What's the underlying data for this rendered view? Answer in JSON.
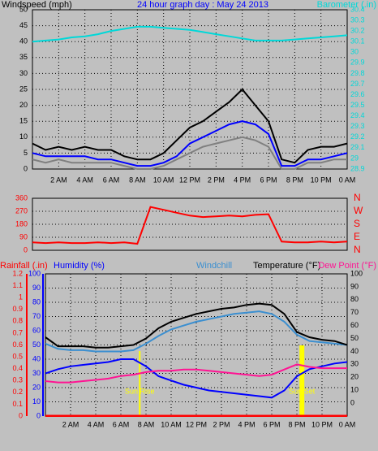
{
  "chart_data": [
    {
      "type": "line",
      "title": "24 hour graph day : May 24 2013",
      "y_label": "Windspeed (mph)",
      "y2_label": "Barometer (.in)",
      "x": [
        0,
        1,
        2,
        3,
        4,
        5,
        6,
        7,
        8,
        9,
        10,
        11,
        12,
        13,
        14,
        15,
        16,
        17,
        18,
        19,
        20,
        21,
        22,
        23,
        24
      ],
      "xlim": [
        0,
        24
      ],
      "xticks": [
        {
          "value": 2,
          "label": "2 AM"
        },
        {
          "value": 4,
          "label": "4 AM"
        },
        {
          "value": 6,
          "label": "6 AM"
        },
        {
          "value": 8,
          "label": "8 AM"
        },
        {
          "value": 10,
          "label": "10 AM"
        },
        {
          "value": 12,
          "label": "12 PM"
        },
        {
          "value": 14,
          "label": "2 PM"
        },
        {
          "value": 16,
          "label": "4 PM"
        },
        {
          "value": 18,
          "label": "6 PM"
        },
        {
          "value": 20,
          "label": "8 PM"
        },
        {
          "value": 22,
          "label": "10 PM"
        },
        {
          "value": 24,
          "label": "0 AM"
        }
      ],
      "ylim": [
        0,
        50
      ],
      "yticks": [
        0,
        5,
        10,
        15,
        20,
        25,
        30,
        35,
        40,
        45,
        50
      ],
      "y2lim": [
        28.9,
        30.4
      ],
      "y2ticks": [
        28.9,
        29,
        29.1,
        29.2,
        29.3,
        29.4,
        29.5,
        29.6,
        29.7,
        29.8,
        29.9,
        30,
        30.1,
        30.2,
        30.3,
        30.4
      ],
      "grid": true,
      "series": [
        {
          "color": "#808080",
          "values": [
            3,
            2,
            3,
            2,
            2,
            2,
            2,
            1,
            0,
            0,
            1,
            3,
            5,
            7,
            8,
            9,
            10,
            9,
            7,
            0,
            0,
            2,
            2,
            3,
            3
          ]
        },
        {
          "color": "#000000",
          "values": [
            8,
            6,
            7,
            6,
            7,
            6,
            6,
            4,
            3,
            3,
            5,
            9,
            13,
            15,
            18,
            21,
            25,
            20,
            15,
            3,
            2,
            6,
            7,
            7,
            8
          ]
        },
        {
          "color": "#0000ff",
          "values": [
            5,
            4,
            4,
            4,
            4,
            3,
            3,
            2,
            1,
            1,
            2,
            4,
            8,
            10,
            12,
            14,
            15,
            14,
            11,
            1,
            1,
            3,
            3,
            4,
            5
          ]
        },
        {
          "color": "#00d8d8",
          "axis": "y2",
          "values": [
            30.1,
            30.11,
            30.12,
            30.14,
            30.15,
            30.17,
            30.2,
            30.22,
            30.24,
            30.24,
            30.23,
            30.22,
            30.21,
            30.19,
            30.17,
            30.15,
            30.13,
            30.11,
            30.11,
            30.11,
            30.12,
            30.13,
            30.14,
            30.15,
            30.16
          ]
        }
      ]
    },
    {
      "type": "line",
      "x": [
        0,
        1,
        2,
        3,
        4,
        5,
        6,
        7,
        8,
        9,
        10,
        11,
        12,
        13,
        14,
        15,
        16,
        17,
        18,
        19,
        20,
        21,
        22,
        23,
        24
      ],
      "xlim": [
        0,
        24
      ],
      "ylim": [
        0,
        360
      ],
      "yticks": [
        0,
        90,
        180,
        270,
        360
      ],
      "y2lim": [
        0,
        360
      ],
      "y2ticks": [
        {
          "value": 0,
          "label": "N"
        },
        {
          "value": 90,
          "label": "E"
        },
        {
          "value": 180,
          "label": "S"
        },
        {
          "value": 270,
          "label": "W"
        },
        {
          "value": 360,
          "label": "N"
        }
      ],
      "grid": true,
      "series": [
        {
          "color": "#ff0000",
          "values": [
            55,
            50,
            55,
            50,
            50,
            55,
            50,
            55,
            45,
            300,
            280,
            260,
            240,
            230,
            235,
            240,
            235,
            245,
            250,
            60,
            55,
            55,
            60,
            55,
            60
          ]
        }
      ]
    },
    {
      "type": "line",
      "x": [
        0,
        1,
        2,
        3,
        4,
        5,
        6,
        7,
        8,
        9,
        10,
        11,
        12,
        13,
        14,
        15,
        16,
        17,
        18,
        19,
        20,
        21,
        22,
        23,
        24
      ],
      "xlim": [
        0,
        24
      ],
      "xticks": [
        {
          "value": 2,
          "label": "2 AM"
        },
        {
          "value": 4,
          "label": "4 AM"
        },
        {
          "value": 6,
          "label": "6 AM"
        },
        {
          "value": 8,
          "label": "8 AM"
        },
        {
          "value": 10,
          "label": "10 AM"
        },
        {
          "value": 12,
          "label": "12 PM"
        },
        {
          "value": 14,
          "label": "2 PM"
        },
        {
          "value": 16,
          "label": "4 PM"
        },
        {
          "value": 18,
          "label": "6 PM"
        },
        {
          "value": 20,
          "label": "8 PM"
        },
        {
          "value": 22,
          "label": "10 PM"
        },
        {
          "value": 24,
          "label": "0 AM"
        }
      ],
      "ylim": [
        0,
        100
      ],
      "yticks": [
        0,
        10,
        20,
        30,
        40,
        50,
        60,
        70,
        80,
        90,
        100
      ],
      "y2lim": [
        -10,
        100
      ],
      "y2ticks": [
        0,
        10,
        20,
        30,
        40,
        50,
        60,
        70,
        80,
        90,
        100
      ],
      "y3lim": [
        0,
        1.2
      ],
      "y3ticks": [
        0,
        0.1,
        0.2,
        0.3,
        0.4,
        0.5,
        0.6,
        0.7,
        0.8,
        0.9,
        1,
        1.1,
        1.2
      ],
      "grid": true,
      "annotations": [
        {
          "text": "Sun Rise",
          "x": 7.5
        },
        {
          "text": "Sun Set",
          "x": 20.4
        }
      ],
      "series": [
        {
          "name": "Rainfall (.in)",
          "color": "#ff0000",
          "axis": "y3",
          "values": [
            0,
            0,
            0,
            0,
            0,
            0,
            0,
            0,
            0,
            0,
            0,
            0,
            0,
            0,
            0,
            0,
            0,
            0,
            0,
            0,
            0,
            0,
            0,
            0,
            0
          ]
        },
        {
          "name": "Humidity (%)",
          "color": "#0000ff",
          "values": [
            30,
            33,
            35,
            36,
            37,
            38,
            40,
            40,
            35,
            28,
            25,
            22,
            20,
            18,
            17,
            16,
            15,
            14,
            13,
            18,
            28,
            33,
            35,
            37,
            38
          ]
        },
        {
          "name": "Windchill",
          "color": "#3b8fd0",
          "axis": "y2",
          "values": [
            46,
            42,
            41,
            41,
            40,
            40,
            40,
            41,
            46,
            52,
            57,
            60,
            63,
            65,
            67,
            69,
            70,
            71,
            69,
            63,
            53,
            48,
            47,
            46,
            45
          ]
        },
        {
          "name": "Temperature (°F)",
          "color": "#000000",
          "axis": "y2",
          "values": [
            51,
            44,
            44,
            44,
            43,
            43,
            44,
            45,
            50,
            58,
            63,
            66,
            69,
            71,
            73,
            74,
            76,
            77,
            76,
            69,
            55,
            51,
            49,
            48,
            45
          ]
        },
        {
          "name": "Dew Point (°F)",
          "color": "#ff1493",
          "axis": "y2",
          "values": [
            17,
            16,
            16,
            17,
            18,
            19,
            21,
            22,
            24,
            25,
            25,
            26,
            26,
            25,
            24,
            23,
            22,
            21,
            22,
            26,
            30,
            28,
            27,
            27,
            27
          ]
        }
      ]
    }
  ]
}
